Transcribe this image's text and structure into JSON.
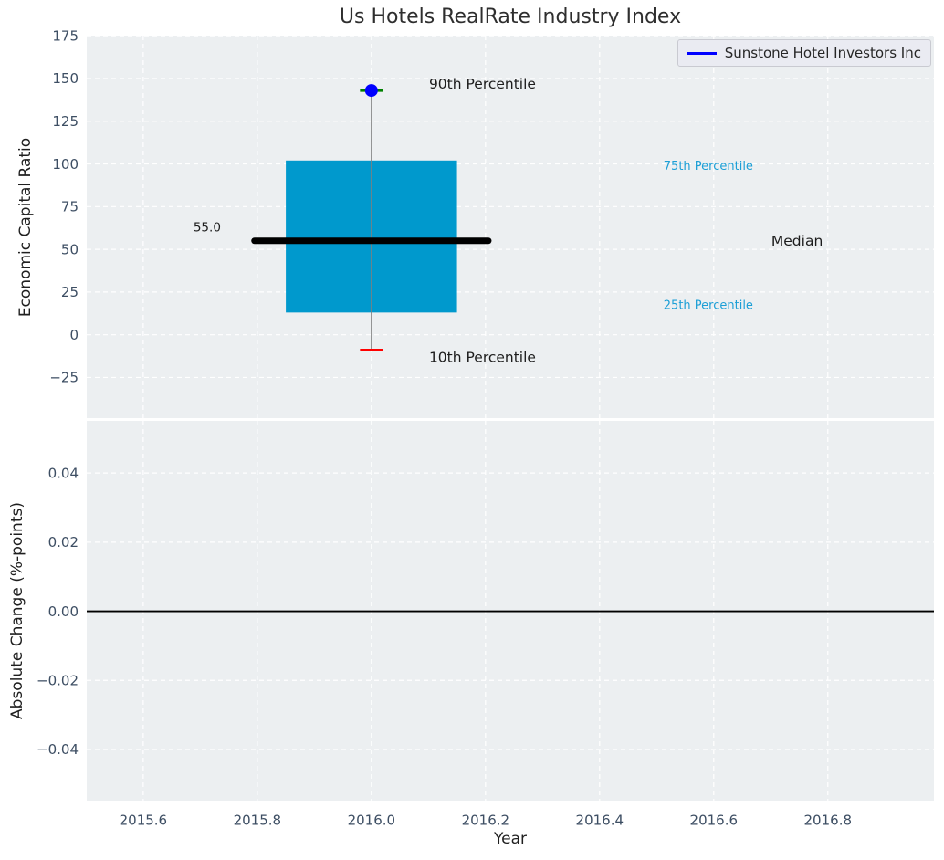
{
  "figure": {
    "title": "Us Hotels RealRate Industry Index",
    "background": "#ffffff",
    "panel_background": "#eceff1",
    "grid_color": "#ffffff",
    "tick_label_color": "#3d4e63",
    "axis_label_color": "#1f1f1f",
    "title_color": "#2e2e2e"
  },
  "legend": {
    "label": "Sunstone Hotel Investors Inc",
    "swatch_color": "#0000ff",
    "background": "#eaebf2",
    "border_color": "#c9cad1",
    "text_color": "#262626"
  },
  "chart_data": [
    {
      "id": "economic-capital-ratio",
      "type": "box",
      "title": "Us Hotels RealRate Industry Index",
      "ylabel": "Economic Capital Ratio",
      "xlabel": "",
      "grid": true,
      "legend_position": "upper right",
      "xlim": [
        2015.501,
        2016.986
      ],
      "ylim": [
        -48.8,
        175.1
      ],
      "xticks": [
        2015.6,
        2015.8,
        2016.0,
        2016.2,
        2016.4,
        2016.6,
        2016.8
      ],
      "yticks": [
        {
          "value": 175,
          "label": "175"
        },
        {
          "value": 150,
          "label": "150"
        },
        {
          "value": 125,
          "label": "125"
        },
        {
          "value": 100,
          "label": "100"
        },
        {
          "value": 75,
          "label": "75"
        },
        {
          "value": 50,
          "label": "50"
        },
        {
          "value": 25,
          "label": "25"
        },
        {
          "value": 0,
          "label": "0"
        },
        {
          "value": -25,
          "label": "−25"
        }
      ],
      "box": {
        "x_center": 2016.0,
        "x_left": 2015.85,
        "x_right": 2016.15,
        "median_line_left": 2015.795,
        "median_line_right": 2016.205,
        "cap_half_width": 0.02,
        "percentiles": {
          "p90": 143,
          "p75": 102,
          "median": 55.0,
          "p25": 13,
          "p10": -9
        },
        "fill_color": "#0099cd",
        "median_color": "#000000",
        "median_line_width": 7,
        "whisker_color": "#7f7f7f",
        "p90_cap_color": "#008000",
        "p10_cap_color": "#ff0000"
      },
      "company_point": {
        "name": "Sunstone Hotel Investors Inc",
        "x": 2016.0,
        "y": 143,
        "color": "#0000ff",
        "radius": 7
      },
      "annotations": [
        {
          "id": "p90-label",
          "text": "90th Percentile",
          "x": 2016.101,
          "y": 147,
          "size": 15.5,
          "color": "#1c1c1c"
        },
        {
          "id": "p10-label",
          "text": "10th Percentile",
          "x": 2016.101,
          "y": -13,
          "size": 15.5,
          "color": "#1c1c1c"
        },
        {
          "id": "median-label",
          "text": "Median",
          "x": 2016.701,
          "y": 55,
          "size": 15.5,
          "color": "#1c1c1c"
        },
        {
          "id": "p75-label",
          "text": "75th Percentile",
          "x": 2016.512,
          "y": 99,
          "size": 13,
          "color": "#1c9fd6"
        },
        {
          "id": "p25-label",
          "text": "25th Percentile",
          "x": 2016.512,
          "y": 17.5,
          "size": 13,
          "color": "#1c9fd6"
        },
        {
          "id": "median-value-label",
          "text": "55.0",
          "x": 2015.688,
          "y": 63,
          "size": 13.5,
          "color": "#1c1c1c"
        }
      ]
    },
    {
      "id": "absolute-change",
      "type": "line",
      "ylabel": "Absolute Change (%-points)",
      "xlabel": "Year",
      "grid": true,
      "xlim": [
        2015.501,
        2016.986
      ],
      "ylim": [
        -0.0548,
        0.0551
      ],
      "xticks": [
        2015.6,
        2015.8,
        2016.0,
        2016.2,
        2016.4,
        2016.6,
        2016.8
      ],
      "xtick_labels": [
        "2015.6",
        "2015.8",
        "2016.0",
        "2016.2",
        "2016.4",
        "2016.6",
        "2016.8"
      ],
      "yticks": [
        {
          "value": 0.04,
          "label": "0.04"
        },
        {
          "value": 0.02,
          "label": "0.02"
        },
        {
          "value": 0.0,
          "label": "0.00"
        },
        {
          "value": -0.02,
          "label": "−0.02"
        },
        {
          "value": -0.04,
          "label": "−0.04"
        }
      ],
      "zero_line": {
        "y": 0.0,
        "color": "#000000",
        "width": 1.8
      },
      "series": []
    }
  ]
}
